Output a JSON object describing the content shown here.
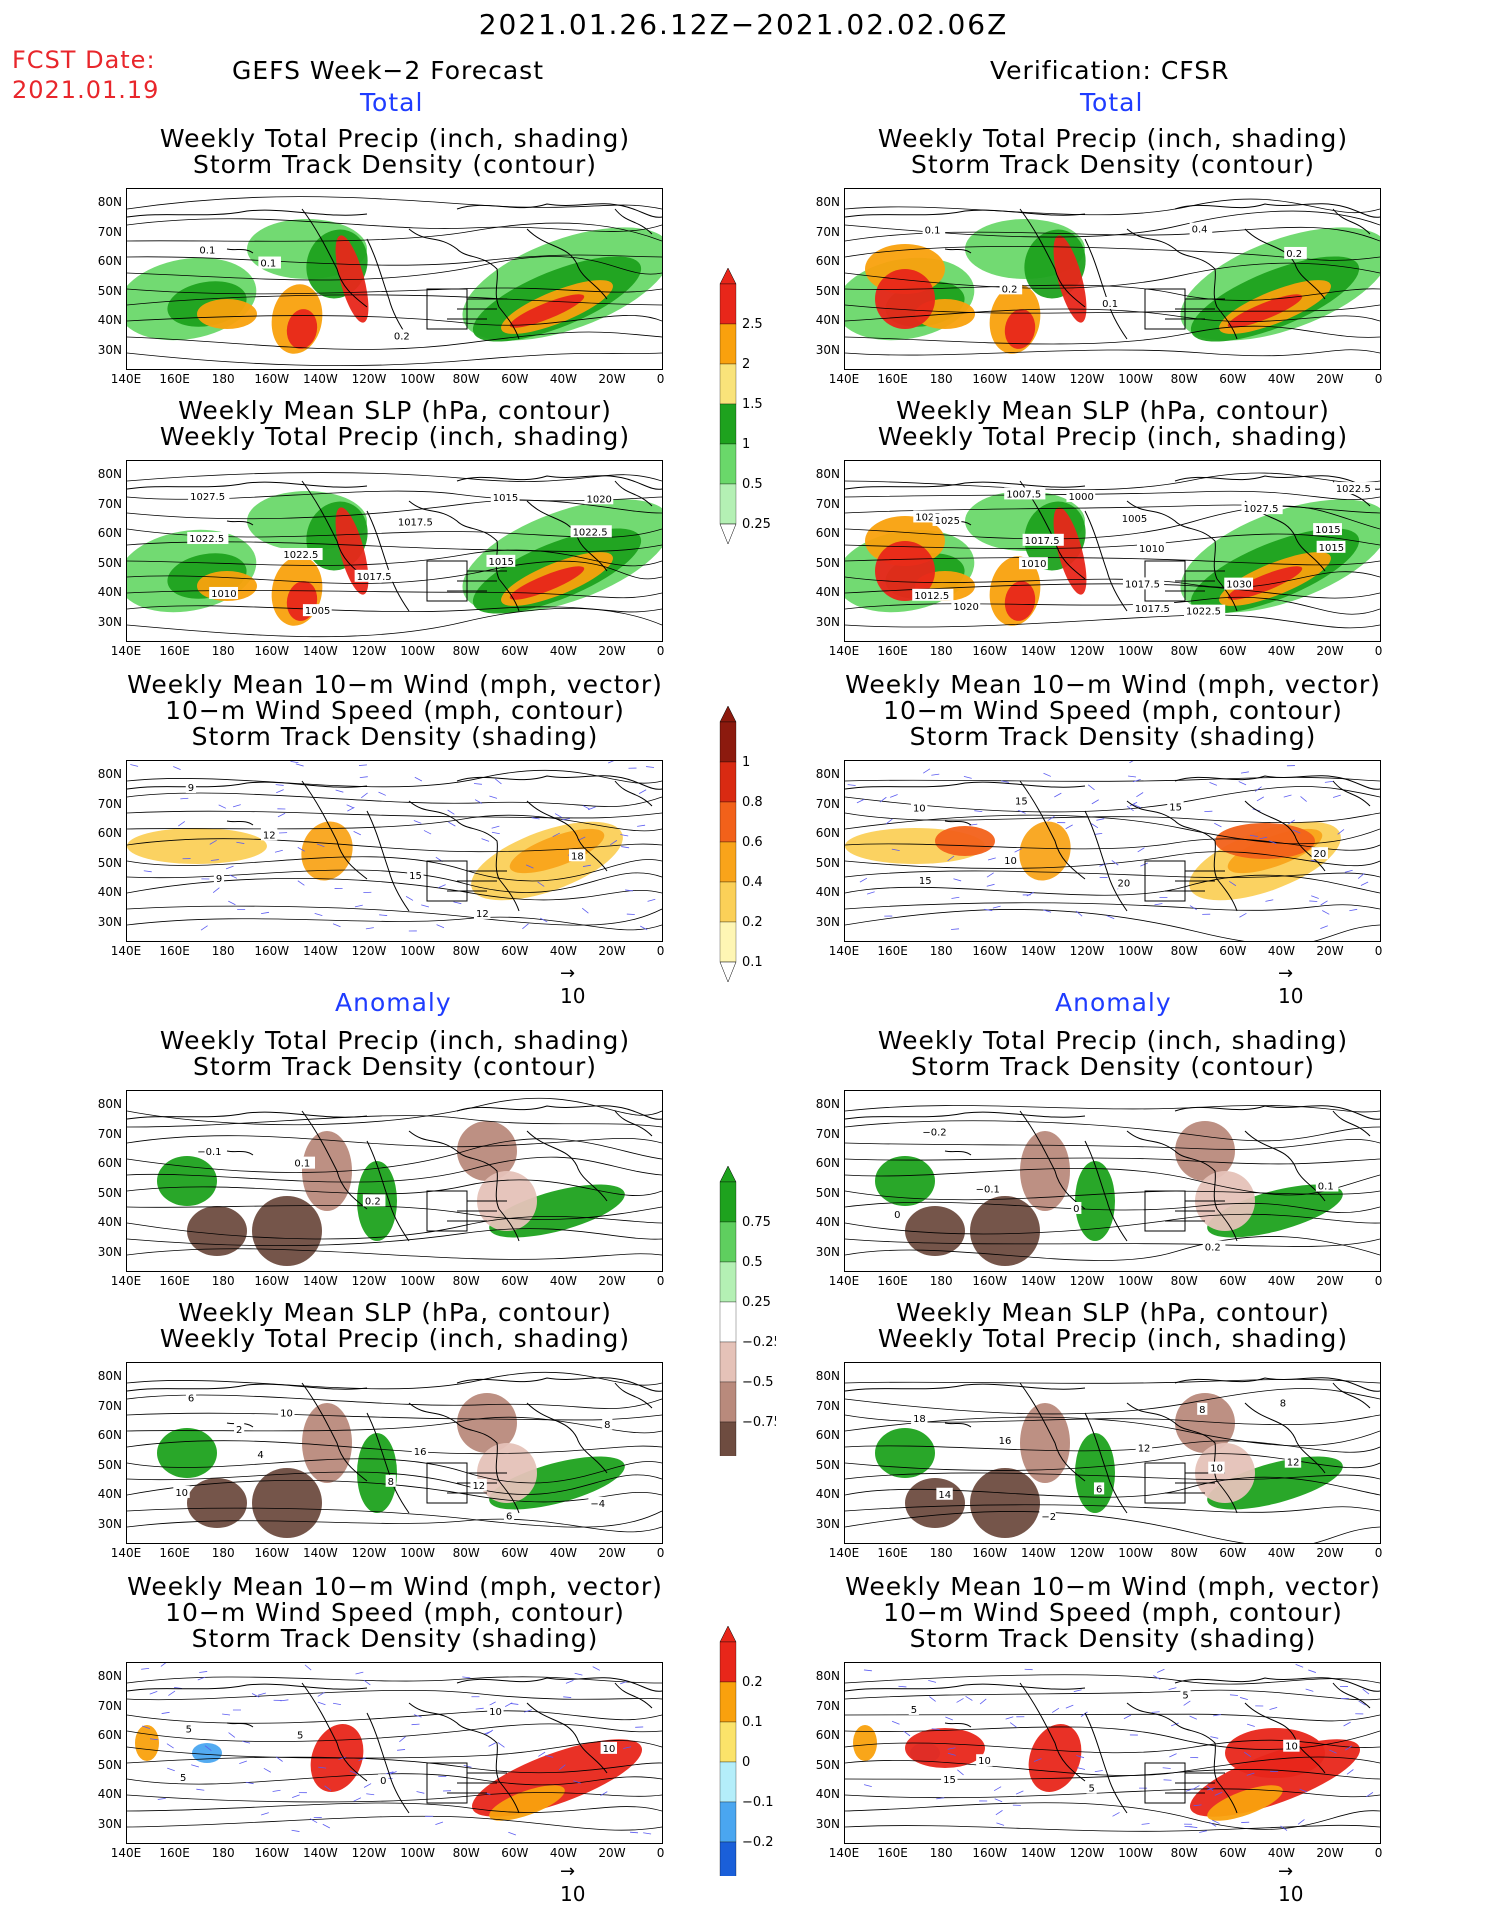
{
  "header": {
    "date_range": "2021.01.26.12Z−2021.02.02.06Z",
    "fcst_date_label": "FCST Date:",
    "fcst_date_value": "2021.01.19",
    "left_heading": "GEFS Week−2 Forecast",
    "right_heading": "Verification: CFSR"
  },
  "sections": {
    "total": "Total",
    "anomaly": "Anomaly"
  },
  "panel_titles": {
    "precip_storm": "Weekly Total Precip (inch, shading)\nStorm Track Density (contour)",
    "slp_precip": "Weekly Mean SLP (hPa, contour)\nWeekly Total Precip (inch, shading)",
    "wind": "Weekly Mean 10−m Wind (mph, vector)\n10−m Wind Speed (mph, contour)\nStorm Track Density (shading)"
  },
  "axes": {
    "lat_labels": [
      "80N",
      "70N",
      "60N",
      "50N",
      "40N",
      "30N"
    ],
    "lon_labels": [
      "140E",
      "160E",
      "180",
      "160W",
      "140W",
      "120W",
      "100W",
      "80W",
      "60W",
      "40W",
      "20W",
      "0"
    ]
  },
  "vector_ref": "10",
  "colorbars": {
    "precip_total": {
      "labels": [
        "2.5",
        "2",
        "1.5",
        "1",
        "0.5",
        "0.25"
      ],
      "colors": [
        "#e8261a",
        "#f9a10d",
        "#f9e37a",
        "#1ea21e",
        "#6ad86a",
        "#b4f0b4"
      ]
    },
    "storm_total": {
      "labels": [
        "1",
        "0.8",
        "0.6",
        "0.4",
        "0.2",
        "0.1"
      ],
      "colors": [
        "#8c1a0e",
        "#d92a12",
        "#f2611a",
        "#f9a41a",
        "#fbd058",
        "#fef6b4"
      ]
    },
    "precip_anom": {
      "labels": [
        "0.75",
        "0.5",
        "0.25",
        "−0.25",
        "−0.5",
        "−0.75"
      ],
      "colors": [
        "#1ea21e",
        "#5fcf5f",
        "#b4f0b4",
        "#ffffff",
        "#e5c2b8",
        "#b98a7c",
        "#6e4c40"
      ]
    },
    "storm_anom": {
      "labels": [
        "0.2",
        "0.1",
        "0",
        "−0.1",
        "−0.2"
      ],
      "colors": [
        "#e8261a",
        "#f9a10d",
        "#fbe36a",
        "#b4eefa",
        "#4aa6f0",
        "#1a5fd9"
      ]
    }
  },
  "panels": {
    "forecast_total": [
      {
        "contour_labels": [
          "0.1",
          "0.1",
          "0.2"
        ]
      },
      {
        "contour_labels": [
          "1027.5",
          "1022.5",
          "1017.5",
          "1015",
          "1022.5",
          "1010",
          "1005",
          "1017.5",
          "1015",
          "1020",
          "1022.5"
        ]
      },
      {
        "contour_labels": [
          "9",
          "12",
          "15",
          "12",
          "18",
          "9"
        ]
      }
    ],
    "verification_total": [
      {
        "contour_labels": [
          "0.1",
          "0.2",
          "0.1",
          "0.4",
          "0.2"
        ]
      },
      {
        "contour_labels": [
          "1025",
          "1017.5",
          "1017.5",
          "1022.5",
          "1015",
          "1012.5",
          "1007.5",
          "1005",
          "1030",
          "1022.5",
          "1025",
          "1010",
          "1017.5",
          "1027.5",
          "1015",
          "1020",
          "1000",
          "1010"
        ]
      },
      {
        "contour_labels": [
          "10",
          "10",
          "20",
          "15",
          "20",
          "15",
          "15"
        ]
      }
    ],
    "forecast_anom": [
      {
        "contour_labels": [
          "−0.1",
          "0.1",
          "0.2"
        ]
      },
      {
        "contour_labels": [
          "6",
          "4",
          "8",
          "6",
          "8",
          "10",
          "10",
          "16",
          "12",
          "−4",
          "2"
        ]
      },
      {
        "contour_labels": [
          "5",
          "5",
          "0",
          "10",
          "10",
          "5"
        ]
      }
    ],
    "verification_anom": [
      {
        "contour_labels": [
          "−0.2",
          "−0.1",
          "0",
          "0.2",
          "0.1",
          "0"
        ]
      },
      {
        "contour_labels": [
          "18",
          "16",
          "6",
          "8",
          "12",
          "14",
          "−2",
          "12",
          "10",
          "8"
        ]
      },
      {
        "contour_labels": [
          "5",
          "10",
          "5",
          "5",
          "10",
          "15"
        ]
      }
    ]
  }
}
